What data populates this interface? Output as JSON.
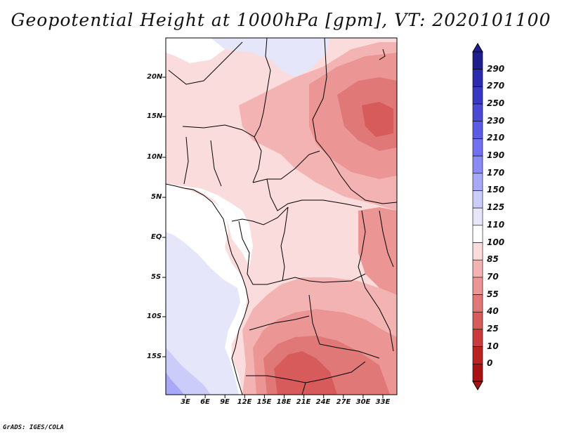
{
  "title": "Geopotential Height at 1000hPa [gpm], VT: 2020101100",
  "credit": "GrADS: IGES/COLA",
  "map": {
    "lat_labels": [
      "20N",
      "15N",
      "10N",
      "5N",
      "EQ",
      "5S",
      "10S",
      "15S"
    ],
    "lon_labels": [
      "3E",
      "6E",
      "9E",
      "12E",
      "15E",
      "18E",
      "21E",
      "24E",
      "27E",
      "30E",
      "33E"
    ]
  },
  "colorbar": {
    "labels": [
      "290",
      "270",
      "250",
      "230",
      "210",
      "190",
      "170",
      "150",
      "125",
      "110",
      "100",
      "85",
      "70",
      "55",
      "40",
      "25",
      "10",
      "0"
    ],
    "colors": [
      "#1e1e8c",
      "#2b2bad",
      "#3838c4",
      "#4a4ad6",
      "#5c5ce6",
      "#7070f0",
      "#8a8af5",
      "#a8a8f8",
      "#ccccfa",
      "#e6e6fb",
      "#ffffff",
      "#fbdcdc",
      "#f4b3b3",
      "#eb9595",
      "#e07878",
      "#d75b5b",
      "#cc3c3c",
      "#bb2222",
      "#a81414"
    ]
  }
}
